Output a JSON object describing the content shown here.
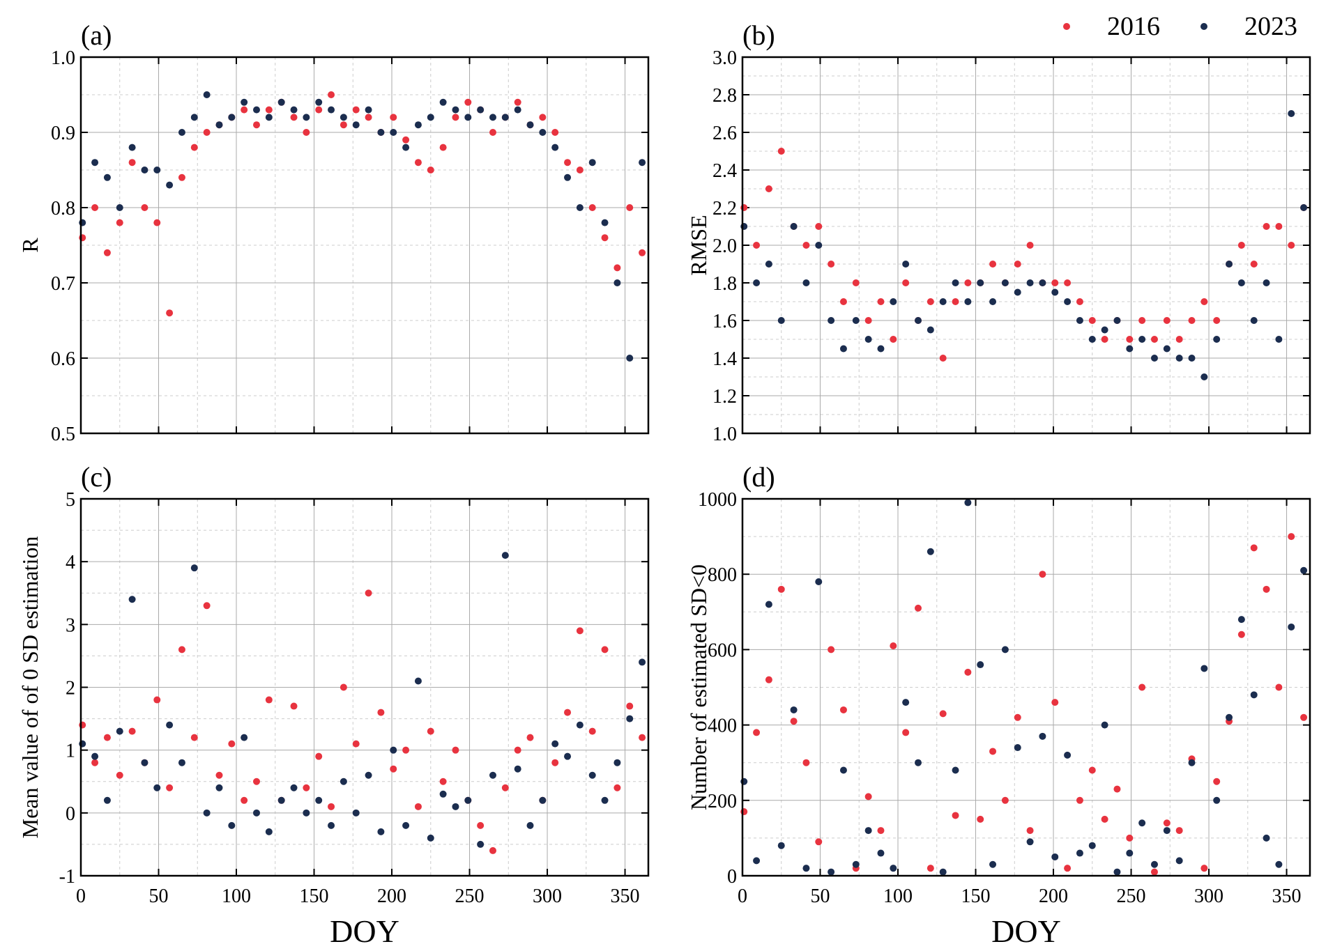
{
  "legend": {
    "placement": "top-right",
    "entries": [
      {
        "name": "2016",
        "color": "#E8333F"
      },
      {
        "name": "2023",
        "color": "#1B2D4F"
      }
    ]
  },
  "chart_data": [
    {
      "type": "scatter",
      "panel_label": "(a)",
      "xlabel": "",
      "ylabel": "R",
      "xlim": [
        0,
        365
      ],
      "ylim": [
        0.5,
        1.0
      ],
      "xticks": [
        0,
        50,
        100,
        150,
        200,
        250,
        300,
        350
      ],
      "show_xtick_labels": false,
      "yticks": [
        "0.5",
        "0.6",
        "0.7",
        "0.8",
        "0.9",
        "1.0"
      ],
      "grid": true,
      "x": [
        1,
        9,
        17,
        25,
        33,
        41,
        49,
        57,
        65,
        73,
        81,
        89,
        97,
        105,
        113,
        121,
        129,
        137,
        145,
        153,
        161,
        169,
        177,
        185,
        193,
        201,
        209,
        217,
        225,
        233,
        241,
        249,
        257,
        265,
        273,
        281,
        289,
        297,
        305,
        313,
        321,
        329,
        337,
        345,
        353,
        361
      ],
      "series": [
        {
          "name": "2016",
          "color": "#E8333F",
          "values": [
            0.76,
            0.8,
            0.74,
            0.78,
            0.86,
            0.8,
            0.78,
            0.66,
            0.84,
            0.88,
            0.9,
            0.91,
            0.92,
            0.93,
            0.91,
            0.93,
            0.94,
            0.92,
            0.9,
            0.93,
            0.95,
            0.91,
            0.93,
            0.92,
            0.9,
            0.92,
            0.89,
            0.86,
            0.85,
            0.88,
            0.92,
            0.94,
            0.93,
            0.9,
            0.92,
            0.94,
            0.91,
            0.92,
            0.9,
            0.86,
            0.85,
            0.8,
            0.76,
            0.72,
            0.8,
            0.74
          ]
        },
        {
          "name": "2023",
          "color": "#1B2D4F",
          "values": [
            0.78,
            0.86,
            0.84,
            0.8,
            0.88,
            0.85,
            0.85,
            0.83,
            0.9,
            0.92,
            0.95,
            0.91,
            0.92,
            0.94,
            0.93,
            0.92,
            0.94,
            0.93,
            0.92,
            0.94,
            0.93,
            0.92,
            0.91,
            0.93,
            0.9,
            0.9,
            0.88,
            0.91,
            0.92,
            0.94,
            0.93,
            0.92,
            0.93,
            0.92,
            0.92,
            0.93,
            0.91,
            0.9,
            0.88,
            0.84,
            0.8,
            0.86,
            0.78,
            0.7,
            0.6,
            0.86
          ]
        }
      ]
    },
    {
      "type": "scatter",
      "panel_label": "(b)",
      "xlabel": "",
      "ylabel": "RMSE",
      "xlim": [
        0,
        365
      ],
      "ylim": [
        1.0,
        3.0
      ],
      "xticks": [
        0,
        50,
        100,
        150,
        200,
        250,
        300,
        350
      ],
      "show_xtick_labels": false,
      "yticks": [
        "1.0",
        "1.2",
        "1.4",
        "1.6",
        "1.8",
        "2.0",
        "2.2",
        "2.4",
        "2.6",
        "2.8",
        "3.0"
      ],
      "grid": true,
      "x": [
        1,
        9,
        17,
        25,
        33,
        41,
        49,
        57,
        65,
        73,
        81,
        89,
        97,
        105,
        113,
        121,
        129,
        137,
        145,
        153,
        161,
        169,
        177,
        185,
        193,
        201,
        209,
        217,
        225,
        233,
        241,
        249,
        257,
        265,
        273,
        281,
        289,
        297,
        305,
        313,
        321,
        329,
        337,
        345,
        353,
        361
      ],
      "series": [
        {
          "name": "2016",
          "color": "#E8333F",
          "values": [
            2.2,
            2.0,
            2.3,
            2.5,
            2.1,
            2.0,
            2.1,
            1.9,
            1.7,
            1.8,
            1.6,
            1.7,
            1.5,
            1.8,
            1.6,
            1.7,
            1.4,
            1.7,
            1.8,
            1.8,
            1.9,
            1.8,
            1.9,
            2.0,
            1.8,
            1.8,
            1.8,
            1.7,
            1.6,
            1.5,
            1.6,
            1.5,
            1.6,
            1.5,
            1.6,
            1.5,
            1.6,
            1.7,
            1.6,
            1.9,
            2.0,
            1.9,
            2.1,
            2.1,
            2.0,
            2.2
          ]
        },
        {
          "name": "2023",
          "color": "#1B2D4F",
          "values": [
            2.1,
            1.8,
            1.9,
            1.6,
            2.1,
            1.8,
            2.0,
            1.6,
            1.45,
            1.6,
            1.5,
            1.45,
            1.7,
            1.9,
            1.6,
            1.55,
            1.7,
            1.8,
            1.7,
            1.8,
            1.7,
            1.8,
            1.75,
            1.8,
            1.8,
            1.75,
            1.7,
            1.6,
            1.5,
            1.55,
            1.6,
            1.45,
            1.5,
            1.4,
            1.45,
            1.4,
            1.4,
            1.3,
            1.5,
            1.9,
            1.8,
            1.6,
            1.8,
            1.5,
            2.7,
            2.2
          ]
        }
      ]
    },
    {
      "type": "scatter",
      "panel_label": "(c)",
      "xlabel": "DOY",
      "ylabel": "Mean value of of 0 SD estimation",
      "xlim": [
        0,
        365
      ],
      "ylim": [
        -1,
        5
      ],
      "xticks": [
        0,
        50,
        100,
        150,
        200,
        250,
        300,
        350
      ],
      "show_xtick_labels": true,
      "yticks": [
        "-1",
        "0",
        "1",
        "2",
        "3",
        "4",
        "5"
      ],
      "grid": true,
      "x": [
        1,
        9,
        17,
        25,
        33,
        41,
        49,
        57,
        65,
        73,
        81,
        89,
        97,
        105,
        113,
        121,
        129,
        137,
        145,
        153,
        161,
        169,
        177,
        185,
        193,
        201,
        209,
        217,
        225,
        233,
        241,
        249,
        257,
        265,
        273,
        281,
        289,
        297,
        305,
        313,
        321,
        329,
        337,
        345,
        353,
        361
      ],
      "series": [
        {
          "name": "2016",
          "color": "#E8333F",
          "values": [
            1.4,
            0.8,
            1.2,
            0.6,
            1.3,
            0.8,
            1.8,
            0.4,
            2.6,
            1.2,
            3.3,
            0.6,
            1.1,
            0.2,
            0.5,
            1.8,
            0.2,
            1.7,
            0.4,
            0.9,
            0.1,
            2.0,
            1.1,
            3.5,
            1.6,
            0.7,
            1.0,
            0.1,
            1.3,
            0.5,
            1.0,
            0.2,
            -0.2,
            -0.6,
            0.4,
            1.0,
            1.2,
            0.2,
            0.8,
            1.6,
            2.9,
            1.3,
            2.6,
            0.4,
            1.7,
            1.2
          ]
        },
        {
          "name": "2023",
          "color": "#1B2D4F",
          "values": [
            1.1,
            0.9,
            0.2,
            1.3,
            3.4,
            0.8,
            0.4,
            1.4,
            0.8,
            3.9,
            0.0,
            0.4,
            -0.2,
            1.2,
            0.0,
            -0.3,
            0.2,
            0.4,
            0.0,
            0.2,
            -0.2,
            0.5,
            0.0,
            0.6,
            -0.3,
            1.0,
            -0.2,
            2.1,
            -0.4,
            0.3,
            0.1,
            0.2,
            -0.5,
            0.6,
            4.1,
            0.7,
            -0.2,
            0.2,
            1.1,
            0.9,
            1.4,
            0.6,
            0.2,
            0.8,
            1.5,
            2.4
          ]
        }
      ]
    },
    {
      "type": "scatter",
      "panel_label": "(d)",
      "xlabel": "DOY",
      "ylabel": "Number of estimated SD<0",
      "xlim": [
        0,
        365
      ],
      "ylim": [
        0,
        1000
      ],
      "xticks": [
        0,
        50,
        100,
        150,
        200,
        250,
        300,
        350
      ],
      "show_xtick_labels": true,
      "yticks": [
        "0",
        "200",
        "400",
        "600",
        "800",
        "1000"
      ],
      "grid": true,
      "x": [
        1,
        9,
        17,
        25,
        33,
        41,
        49,
        57,
        65,
        73,
        81,
        89,
        97,
        105,
        113,
        121,
        129,
        137,
        145,
        153,
        161,
        169,
        177,
        185,
        193,
        201,
        209,
        217,
        225,
        233,
        241,
        249,
        257,
        265,
        273,
        281,
        289,
        297,
        305,
        313,
        321,
        329,
        337,
        345,
        353,
        361
      ],
      "series": [
        {
          "name": "2016",
          "color": "#E8333F",
          "values": [
            170,
            380,
            520,
            760,
            410,
            300,
            90,
            600,
            440,
            20,
            210,
            120,
            610,
            380,
            710,
            20,
            430,
            160,
            540,
            150,
            330,
            200,
            420,
            120,
            800,
            460,
            20,
            200,
            280,
            150,
            230,
            100,
            500,
            10,
            140,
            120,
            310,
            20,
            250,
            410,
            640,
            870,
            760,
            500,
            900,
            420
          ]
        },
        {
          "name": "2023",
          "color": "#1B2D4F",
          "values": [
            250,
            40,
            720,
            80,
            440,
            20,
            780,
            10,
            280,
            30,
            120,
            60,
            20,
            460,
            300,
            860,
            10,
            280,
            990,
            560,
            30,
            600,
            340,
            90,
            370,
            50,
            320,
            60,
            80,
            400,
            10,
            60,
            140,
            30,
            120,
            40,
            300,
            550,
            200,
            420,
            680,
            480,
            100,
            30,
            660,
            810
          ]
        }
      ]
    }
  ]
}
